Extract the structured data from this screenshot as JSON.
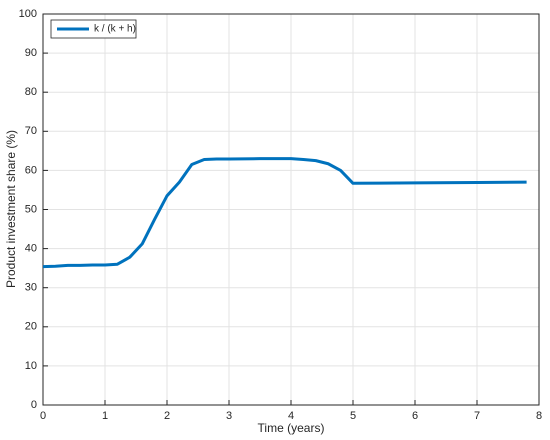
{
  "chart_data": {
    "type": "line",
    "x_label": "Time (years)",
    "y_label": "Product investment share (%)",
    "x": [
      0,
      0.2,
      0.4,
      0.6,
      0.8,
      1.0,
      1.2,
      1.4,
      1.6,
      1.8,
      2.0,
      2.2,
      2.4,
      2.6,
      2.8,
      3.0,
      3.5,
      4.0,
      4.2,
      4.4,
      4.6,
      4.8,
      5.0,
      6.0,
      7.0,
      7.8
    ],
    "series": [
      {
        "name": "k / (k + h)",
        "color": "#0072bd",
        "values": [
          35.4,
          35.5,
          35.7,
          35.7,
          35.8,
          35.8,
          36.0,
          37.8,
          41.2,
          47.5,
          53.5,
          57.0,
          61.5,
          62.8,
          62.9,
          62.9,
          63.0,
          63.0,
          62.8,
          62.5,
          61.7,
          60.0,
          56.7,
          56.8,
          56.9,
          57.0
        ]
      }
    ],
    "xlim": [
      0,
      8
    ],
    "xticks": [
      0,
      1,
      2,
      3,
      4,
      5,
      6,
      7,
      8
    ],
    "ylim": [
      0,
      100
    ],
    "yticks": [
      0,
      10,
      20,
      30,
      40,
      50,
      60,
      70,
      80,
      90,
      100
    ],
    "grid": true,
    "legend": "top-left"
  }
}
